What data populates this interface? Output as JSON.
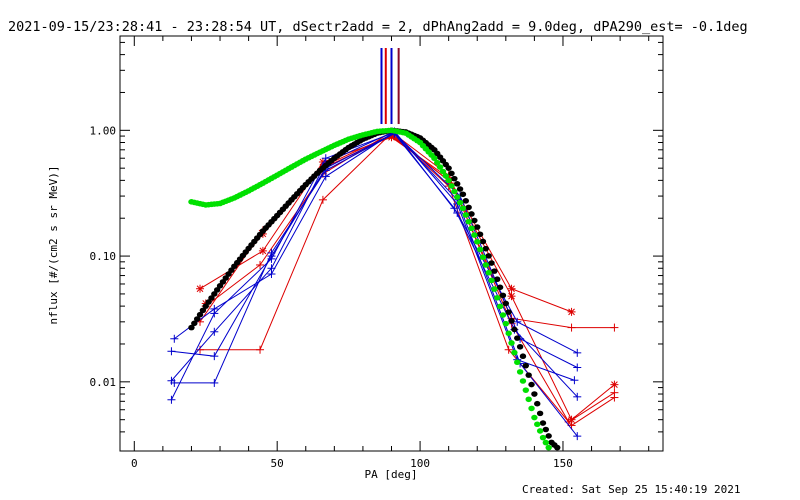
{
  "chart_data": {
    "type": "scatter",
    "title": "2021-09-15/23:28:41 - 23:28:54 UT, dSectr2add = 2, dPhAng2add = 9.0deg, dPA290_est= -0.1deg",
    "xlabel": "PA [deg]",
    "ylabel": "nflux [#/(cm2 s sr MeV)]",
    "xlim": [
      -5,
      185
    ],
    "ylim_log10": [
      -2.55,
      0.75
    ],
    "xticks": [
      {
        "v": 0,
        "label": "0"
      },
      {
        "v": 50,
        "label": "50"
      },
      {
        "v": 100,
        "label": "100"
      },
      {
        "v": 150,
        "label": "150"
      }
    ],
    "xminor": [
      10,
      20,
      30,
      40,
      60,
      70,
      80,
      90,
      110,
      120,
      130,
      140,
      160,
      170,
      180
    ],
    "yticks": [
      {
        "v": 1.0,
        "label": "1.00"
      },
      {
        "v": 0.1,
        "label": "0.10"
      },
      {
        "v": 0.01,
        "label": "0.01"
      }
    ],
    "yminor": [
      0.004,
      0.005,
      0.006,
      0.007,
      0.008,
      0.009,
      0.02,
      0.03,
      0.04,
      0.05,
      0.06,
      0.07,
      0.08,
      0.09,
      0.2,
      0.3,
      0.4,
      0.5,
      0.6,
      0.7,
      0.8,
      0.9,
      2,
      3,
      4,
      5
    ],
    "footer": "Created: Sat Sep 25 15:40:19 2021",
    "colors": {
      "red": "#dd0000",
      "blue": "#0000cc",
      "green": "#00e000",
      "black": "#000000",
      "maroon": "#8b0a2a"
    },
    "vertical_markers": [
      {
        "x": 86.5,
        "color": "#0000cc"
      },
      {
        "x": 88.0,
        "color": "#dd0000"
      },
      {
        "x": 90.0,
        "color": "#0000cc"
      },
      {
        "x": 92.5,
        "color": "#8b0a2a"
      }
    ],
    "series": [
      {
        "name": "black fit",
        "color": "#000000",
        "style": "dots",
        "x": [
          20,
          25,
          30,
          35,
          40,
          45,
          50,
          55,
          60,
          65,
          70,
          75,
          80,
          85,
          90,
          95,
          100,
          105,
          110,
          115,
          120,
          125,
          130,
          135,
          140,
          143,
          146,
          148
        ],
        "y": [
          0.027,
          0.04,
          0.058,
          0.083,
          0.115,
          0.158,
          0.21,
          0.28,
          0.37,
          0.48,
          0.6,
          0.73,
          0.85,
          0.95,
          1.0,
          0.97,
          0.87,
          0.7,
          0.5,
          0.31,
          0.17,
          0.088,
          0.042,
          0.019,
          0.008,
          0.0047,
          0.0033,
          0.003
        ]
      },
      {
        "name": "green fit",
        "color": "#00e000",
        "style": "dots",
        "x": [
          20,
          25,
          30,
          35,
          40,
          45,
          50,
          55,
          60,
          65,
          70,
          75,
          80,
          85,
          90,
          95,
          100,
          105,
          110,
          115,
          120,
          125,
          130,
          135,
          140,
          143,
          145
        ],
        "y": [
          0.27,
          0.255,
          0.262,
          0.29,
          0.33,
          0.38,
          0.44,
          0.51,
          0.59,
          0.67,
          0.76,
          0.85,
          0.92,
          0.98,
          1.0,
          0.95,
          0.8,
          0.6,
          0.4,
          0.24,
          0.13,
          0.064,
          0.029,
          0.012,
          0.0052,
          0.0036,
          0.003
        ]
      },
      {
        "name": "red 1",
        "color": "#dd0000",
        "marker": "star",
        "x": [
          23,
          45,
          66,
          90,
          110,
          132,
          153
        ],
        "y": [
          0.055,
          0.11,
          0.56,
          0.88,
          0.42,
          0.055,
          0.036
        ]
      },
      {
        "name": "red 2",
        "color": "#dd0000",
        "marker": "star",
        "x": [
          25,
          45,
          66,
          90,
          110,
          132,
          153,
          168
        ],
        "y": [
          0.042,
          0.15,
          0.5,
          0.9,
          0.4,
          0.048,
          0.005,
          0.0095
        ]
      },
      {
        "name": "red 3",
        "color": "#dd0000",
        "marker": "plus",
        "x": [
          23,
          45,
          67,
          90,
          111,
          132,
          153,
          168
        ],
        "y": [
          0.03,
          0.16,
          0.53,
          0.92,
          0.38,
          0.032,
          0.027,
          0.027
        ]
      },
      {
        "name": "red 4",
        "color": "#dd0000",
        "marker": "plus",
        "x": [
          23,
          44,
          66,
          90,
          110,
          131,
          153,
          168
        ],
        "y": [
          0.018,
          0.018,
          0.28,
          0.95,
          0.36,
          0.018,
          0.0045,
          0.0075
        ]
      },
      {
        "name": "red 5",
        "color": "#dd0000",
        "marker": "plus",
        "x": [
          25,
          44,
          66,
          90,
          110,
          132,
          152,
          168
        ],
        "y": [
          0.04,
          0.085,
          0.45,
          0.97,
          0.44,
          0.029,
          0.0048,
          0.0082
        ]
      },
      {
        "name": "blue 1",
        "color": "#0000cc",
        "marker": "plus",
        "x": [
          14,
          28,
          48,
          67,
          91,
          113,
          134,
          155
        ],
        "y": [
          0.022,
          0.038,
          0.072,
          0.43,
          0.97,
          0.22,
          0.03,
          0.017
        ]
      },
      {
        "name": "blue 2",
        "color": "#0000cc",
        "marker": "plus",
        "x": [
          13,
          28,
          48,
          67,
          91,
          114,
          135,
          155
        ],
        "y": [
          0.0175,
          0.016,
          0.1,
          0.5,
          0.95,
          0.3,
          0.022,
          0.013
        ]
      },
      {
        "name": "blue 3",
        "color": "#0000cc",
        "marker": "plus",
        "x": [
          13,
          28,
          48,
          67,
          91,
          113,
          134,
          154
        ],
        "y": [
          0.0102,
          0.025,
          0.08,
          0.55,
          0.98,
          0.26,
          0.015,
          0.0103
        ]
      },
      {
        "name": "blue 4",
        "color": "#0000cc",
        "marker": "plus",
        "x": [
          13,
          28,
          48,
          67,
          91,
          113,
          135,
          155
        ],
        "y": [
          0.0072,
          0.035,
          0.095,
          0.6,
          0.96,
          0.28,
          0.014,
          0.0037
        ]
      },
      {
        "name": "blue 5",
        "color": "#0000cc",
        "marker": "plus",
        "x": [
          14,
          28,
          48,
          67,
          91,
          112,
          133,
          155
        ],
        "y": [
          0.0098,
          0.0098,
          0.106,
          0.48,
          0.94,
          0.24,
          0.026,
          0.0076
        ]
      }
    ]
  }
}
